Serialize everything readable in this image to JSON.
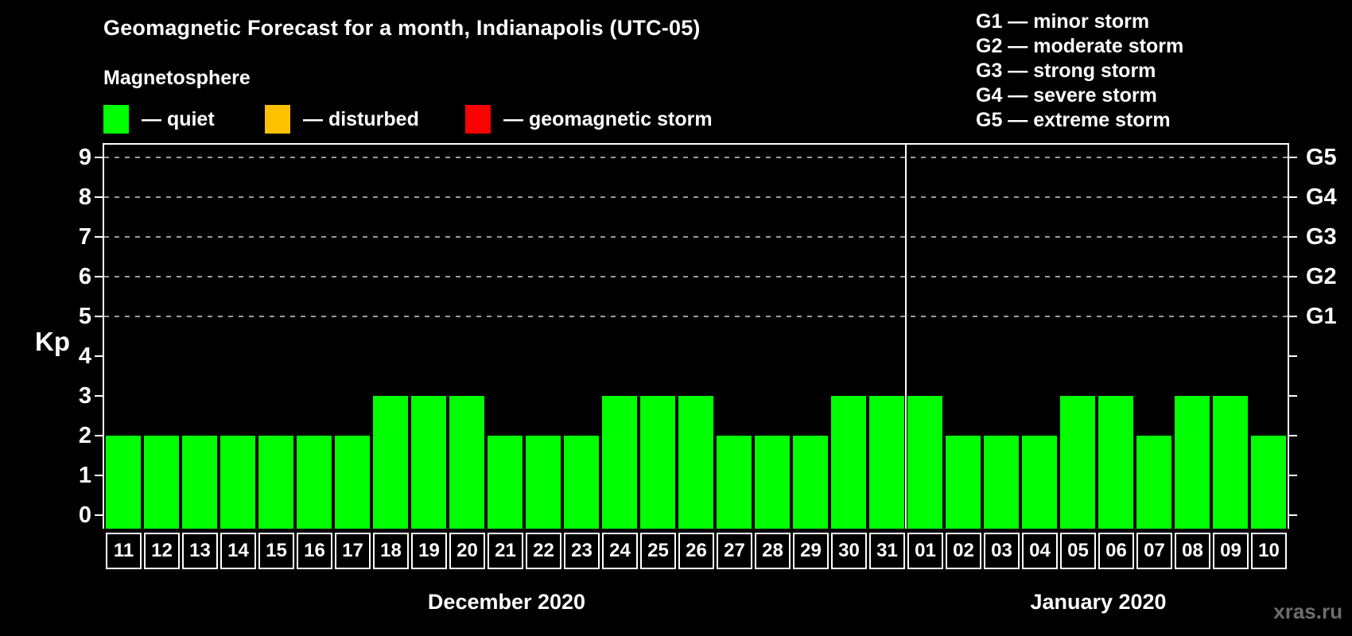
{
  "title": "Geomagnetic Forecast for a month, Indianapolis (UTC-05)",
  "legend": {
    "heading": "Magnetosphere",
    "items": [
      {
        "name": "quiet",
        "label": "— quiet",
        "color": "#00ff00"
      },
      {
        "name": "disturbed",
        "label": "— disturbed",
        "color": "#ffc000"
      },
      {
        "name": "geomagnetic-storm",
        "label": "— geomagnetic storm",
        "color": "#ff0000"
      }
    ]
  },
  "g_legend": [
    "G1 — minor storm",
    "G2 — moderate storm",
    "G3 — strong storm",
    "G4 — severe storm",
    "G5 — extreme storm"
  ],
  "watermark": "xras.ru",
  "chart_data": {
    "type": "bar",
    "title": "Geomagnetic Forecast for a month, Indianapolis (UTC-05)",
    "ylabel": "Kp",
    "yticks": [
      0,
      1,
      2,
      3,
      4,
      5,
      6,
      7,
      8,
      9
    ],
    "ylim": [
      -0.34,
      9.32
    ],
    "grid": "dashed horizontal lines at Kp 5..9 only",
    "legend_position": "top-left and top-right",
    "right_axis_levels": [
      {
        "kp": 5,
        "label": "G1"
      },
      {
        "kp": 6,
        "label": "G2"
      },
      {
        "kp": 7,
        "label": "G3"
      },
      {
        "kp": 8,
        "label": "G4"
      },
      {
        "kp": 9,
        "label": "G5"
      }
    ],
    "bar_color_quiet": "#00ff00",
    "bar_color_disturbed": "#ffc000",
    "bar_color_storm": "#ff0000",
    "categories": [
      "11",
      "12",
      "13",
      "14",
      "15",
      "16",
      "17",
      "18",
      "19",
      "20",
      "21",
      "22",
      "23",
      "24",
      "25",
      "26",
      "27",
      "28",
      "29",
      "30",
      "31",
      "01",
      "02",
      "03",
      "04",
      "05",
      "06",
      "07",
      "08",
      "09",
      "10"
    ],
    "values": [
      2,
      2,
      2,
      2,
      2,
      2,
      2,
      3,
      3,
      3,
      2,
      2,
      2,
      3,
      3,
      3,
      2,
      2,
      2,
      3,
      3,
      3,
      2,
      2,
      2,
      3,
      3,
      2,
      3,
      3,
      2
    ],
    "month_groups": [
      {
        "label": "December 2020",
        "start": 0,
        "count": 21
      },
      {
        "label": "January 2020",
        "start": 21,
        "count": 10
      }
    ]
  }
}
